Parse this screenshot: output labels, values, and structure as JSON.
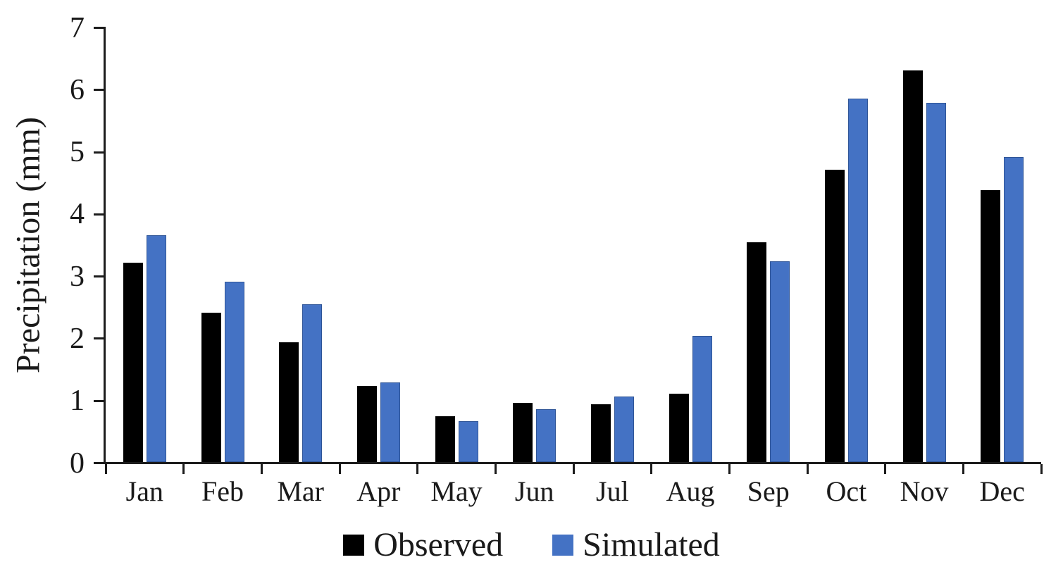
{
  "chart_data": {
    "type": "bar",
    "title": "",
    "xlabel": "",
    "ylabel": "Precipitation (mm)",
    "ylim": [
      0,
      7
    ],
    "yticks": [
      0,
      1,
      2,
      3,
      4,
      5,
      6,
      7
    ],
    "grid": false,
    "legend_position": "bottom",
    "categories": [
      "Jan",
      "Feb",
      "Mar",
      "Apr",
      "May",
      "Jun",
      "Jul",
      "Aug",
      "Sep",
      "Oct",
      "Nov",
      "Dec"
    ],
    "series": [
      {
        "name": "Observed",
        "color": "#000000",
        "values": [
          3.2,
          2.4,
          1.93,
          1.22,
          0.74,
          0.95,
          0.93,
          1.1,
          3.53,
          4.7,
          6.3,
          4.37
        ]
      },
      {
        "name": "Simulated",
        "color": "#4472C4",
        "values": [
          3.65,
          2.9,
          2.54,
          1.28,
          0.66,
          0.85,
          1.05,
          2.03,
          3.23,
          5.85,
          5.78,
          4.9
        ]
      }
    ]
  },
  "colors": {
    "axis": "#1c1c1c",
    "background": "#ffffff",
    "observed": "#000000",
    "simulated": "#4472C4"
  }
}
